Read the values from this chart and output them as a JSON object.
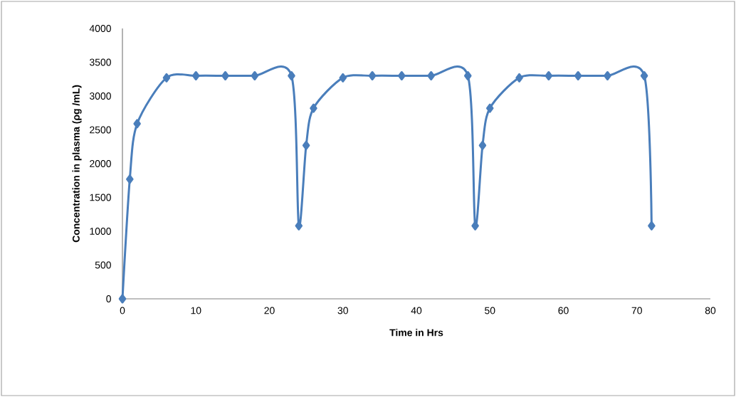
{
  "chart_data": {
    "type": "line",
    "xlabel": "Time in Hrs",
    "ylabel": "Concentration in plasma (ρg /mL)",
    "x": [
      0,
      1,
      2,
      6,
      10,
      14,
      18,
      23,
      24,
      25,
      26,
      30,
      34,
      38,
      42,
      47,
      48,
      49,
      50,
      54,
      58,
      62,
      66,
      71,
      72
    ],
    "series": [
      {
        "color": "#4a7ebb",
        "values": [
          0,
          1770,
          2590,
          3270,
          3300,
          3300,
          3300,
          3300,
          1080,
          2270,
          2820,
          3270,
          3300,
          3300,
          3300,
          3300,
          1080,
          2270,
          2820,
          3270,
          3300,
          3300,
          3300,
          3300,
          1080
        ]
      }
    ],
    "xlim": [
      0,
      80
    ],
    "ylim": [
      0,
      4000
    ],
    "xticks": [
      0,
      10,
      20,
      30,
      40,
      50,
      60,
      70,
      80
    ],
    "yticks": [
      0,
      500,
      1000,
      1500,
      2000,
      2500,
      3000,
      3500,
      4000
    ],
    "marker": "diamond",
    "line_style": "solid"
  }
}
